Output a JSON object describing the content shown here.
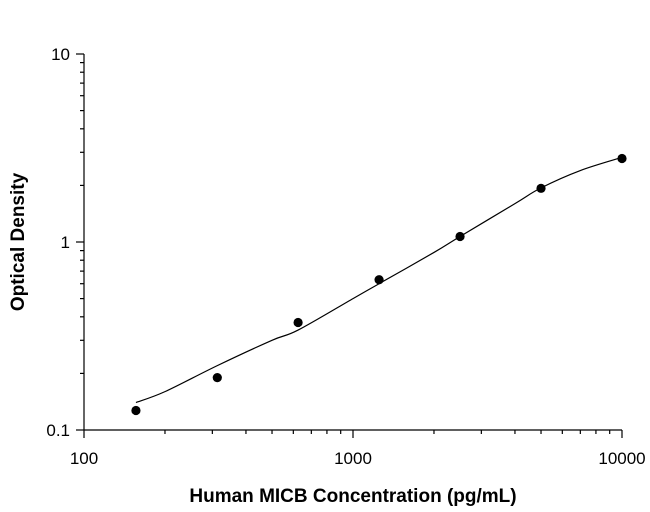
{
  "chart_data": {
    "type": "scatter",
    "title": "",
    "xlabel": "Human MICB Concentration (pg/mL)",
    "ylabel": "Optical Density",
    "x_scale": "log",
    "y_scale": "log",
    "xlim": [
      100,
      10000
    ],
    "ylim": [
      0.1,
      10
    ],
    "x_ticks": [
      "100",
      "1000",
      "10000"
    ],
    "y_ticks": [
      "0.1",
      "1",
      "10"
    ],
    "grid": false,
    "legend": "none",
    "series": [
      {
        "x": [
          156,
          313,
          625,
          1250,
          2500,
          5000,
          10000
        ],
        "y": [
          0.127,
          0.19,
          0.373,
          0.63,
          1.07,
          1.93,
          2.78
        ]
      }
    ],
    "fit_curve": {
      "x": [
        156,
        200,
        313,
        500,
        625,
        1000,
        1250,
        2000,
        2500,
        4000,
        5000,
        7000,
        10000
      ],
      "y": [
        0.14,
        0.16,
        0.22,
        0.3,
        0.34,
        0.5,
        0.6,
        0.88,
        1.07,
        1.6,
        1.94,
        2.4,
        2.82
      ]
    }
  }
}
